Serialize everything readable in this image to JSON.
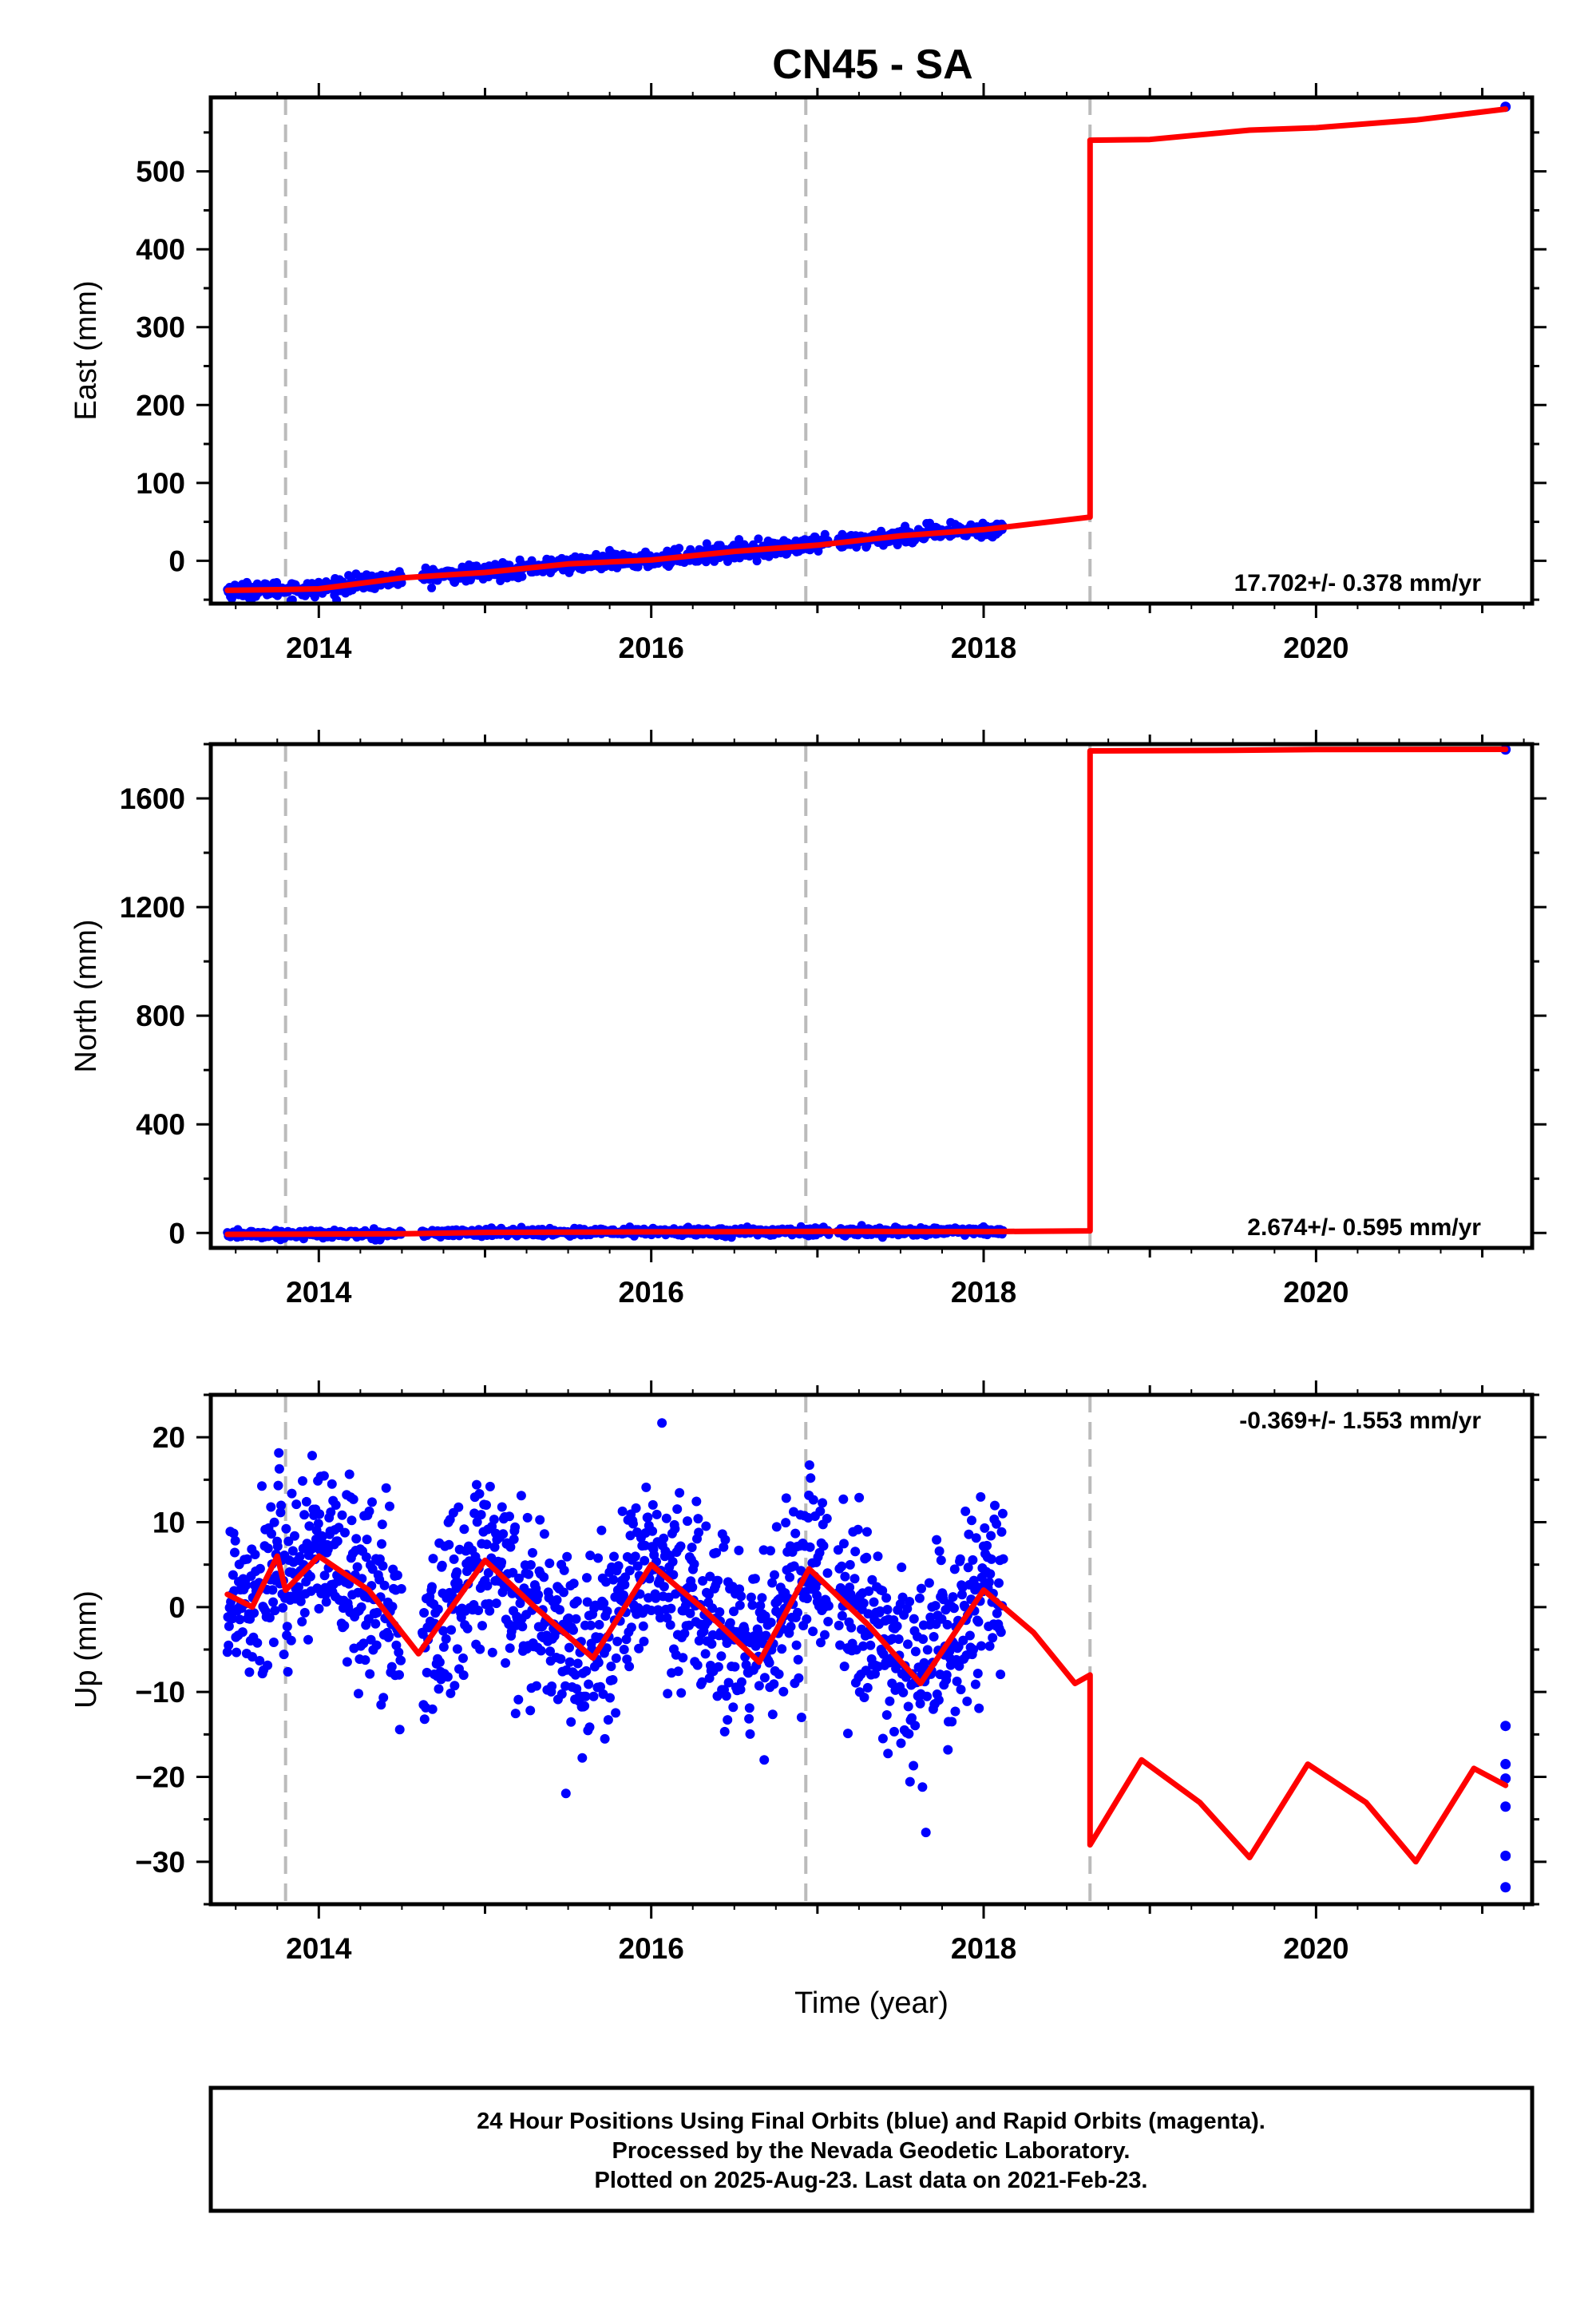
{
  "title": "CN45 - SA",
  "colors": {
    "data_points": "#0000ff",
    "model_line": "#ff0000",
    "event_lines": "#bbbbbb",
    "axes": "#000000"
  },
  "chart_data": [
    {
      "type": "scatter",
      "panel": "east",
      "ylabel": "East (mm)",
      "xlabel": "",
      "xlim": [
        2013.35,
        2021.3
      ],
      "ylim": [
        -55,
        595
      ],
      "yticks": [
        0,
        100,
        200,
        300,
        400,
        500
      ],
      "xticks": [
        2014,
        2016,
        2018,
        2020
      ],
      "event_lines_x": [
        2013.8,
        2016.93,
        2018.64
      ],
      "rate_text": "17.702+/- 0.378 mm/yr",
      "rate_position": "bottom-right",
      "series": [
        {
          "kind": "points",
          "trend": [
            [
              2013.45,
              -38
            ],
            [
              2014.0,
              -36
            ],
            [
              2014.5,
              -22
            ],
            [
              2015.0,
              -15
            ],
            [
              2015.5,
              -4
            ],
            [
              2016.0,
              1
            ],
            [
              2016.5,
              12
            ],
            [
              2017.0,
              20
            ],
            [
              2017.5,
              32
            ],
            [
              2018.12,
              42
            ]
          ],
          "noise": 5,
          "last_point": [
            2021.14,
            583
          ]
        },
        {
          "kind": "model",
          "points": [
            [
              2013.45,
              -38
            ],
            [
              2013.8,
              -37
            ],
            [
              2014.0,
              -36
            ],
            [
              2014.5,
              -22
            ],
            [
              2015.0,
              -15
            ],
            [
              2015.5,
              -4
            ],
            [
              2016.0,
              1
            ],
            [
              2016.5,
              12
            ],
            [
              2017.0,
              20
            ],
            [
              2017.5,
              32
            ],
            [
              2018.0,
              40
            ],
            [
              2018.64,
              56
            ],
            [
              2018.64,
              540
            ],
            [
              2019.0,
              541
            ],
            [
              2019.6,
              553
            ],
            [
              2020.0,
              556
            ],
            [
              2020.6,
              566
            ],
            [
              2021.14,
              580
            ]
          ]
        }
      ]
    },
    {
      "type": "scatter",
      "panel": "north",
      "ylabel": "North (mm)",
      "xlabel": "",
      "xlim": [
        2013.35,
        2021.3
      ],
      "ylim": [
        -55,
        1800
      ],
      "yticks": [
        0,
        400,
        800,
        1200,
        1600
      ],
      "xticks": [
        2014,
        2016,
        2018,
        2020
      ],
      "event_lines_x": [
        2013.8,
        2016.93,
        2018.64
      ],
      "rate_text": "2.674+/- 0.595 mm/yr",
      "rate_position": "bottom-right",
      "series": [
        {
          "kind": "points",
          "trend": [
            [
              2013.45,
              -5
            ],
            [
              2014.5,
              -3
            ],
            [
              2015.0,
              2
            ],
            [
              2016.0,
              4
            ],
            [
              2017.0,
              6
            ],
            [
              2018.12,
              5
            ]
          ],
          "noise": 7,
          "last_point": [
            2021.14,
            1780
          ]
        },
        {
          "kind": "model",
          "points": [
            [
              2013.45,
              -5
            ],
            [
              2014.5,
              -3
            ],
            [
              2015.0,
              2
            ],
            [
              2016.0,
              4
            ],
            [
              2017.0,
              6
            ],
            [
              2018.0,
              5
            ],
            [
              2018.64,
              8
            ],
            [
              2018.64,
              1775
            ],
            [
              2019.5,
              1777
            ],
            [
              2020.0,
              1780
            ],
            [
              2021.14,
              1781
            ]
          ]
        }
      ]
    },
    {
      "type": "scatter",
      "panel": "up",
      "ylabel": "Up (mm)",
      "xlabel": "Time (year)",
      "xlim": [
        2013.35,
        2021.3
      ],
      "ylim": [
        -35,
        25
      ],
      "yticks": [
        -30,
        -20,
        -10,
        0,
        10,
        20
      ],
      "xticks": [
        2014,
        2016,
        2018,
        2020
      ],
      "event_lines_x": [
        2013.8,
        2016.93,
        2018.64
      ],
      "rate_text": "-0.369+/- 1.553 mm/yr",
      "rate_position": "top-right",
      "series": [
        {
          "kind": "points",
          "trend": [
            [
              2013.45,
              1
            ],
            [
              2013.75,
              4
            ],
            [
              2014.0,
              6
            ],
            [
              2014.3,
              2
            ],
            [
              2014.6,
              -5
            ],
            [
              2015.0,
              5
            ],
            [
              2015.3,
              0
            ],
            [
              2015.6,
              -6
            ],
            [
              2016.0,
              5
            ],
            [
              2016.3,
              0
            ],
            [
              2016.6,
              -6
            ],
            [
              2016.95,
              4
            ],
            [
              2017.3,
              -2
            ],
            [
              2017.6,
              -9
            ],
            [
              2018.0,
              2
            ],
            [
              2018.12,
              0
            ]
          ],
          "noise": 5.5,
          "last_points": [
            [
              2021.14,
              -14
            ],
            [
              2021.14,
              -18.5
            ],
            [
              2021.14,
              -20.2
            ],
            [
              2021.14,
              -23.5
            ],
            [
              2021.14,
              -29.3
            ],
            [
              2021.14,
              -33
            ]
          ]
        },
        {
          "kind": "model",
          "points": [
            [
              2013.45,
              1.5
            ],
            [
              2013.6,
              0
            ],
            [
              2013.75,
              6
            ],
            [
              2013.8,
              2
            ],
            [
              2014.0,
              6
            ],
            [
              2014.3,
              2
            ],
            [
              2014.6,
              -5.5
            ],
            [
              2015.0,
              5.5
            ],
            [
              2015.3,
              0
            ],
            [
              2015.65,
              -6
            ],
            [
              2016.0,
              5
            ],
            [
              2016.3,
              0
            ],
            [
              2016.65,
              -6.5
            ],
            [
              2016.95,
              4.5
            ],
            [
              2017.3,
              -2
            ],
            [
              2017.62,
              -9
            ],
            [
              2018.0,
              2
            ],
            [
              2018.3,
              -3
            ],
            [
              2018.55,
              -9
            ],
            [
              2018.64,
              -8
            ],
            [
              2018.64,
              -28
            ],
            [
              2018.95,
              -18
            ],
            [
              2019.3,
              -23
            ],
            [
              2019.6,
              -29.5
            ],
            [
              2019.95,
              -18.5
            ],
            [
              2020.3,
              -23
            ],
            [
              2020.6,
              -30
            ],
            [
              2020.95,
              -19
            ],
            [
              2021.14,
              -21
            ]
          ]
        }
      ]
    }
  ],
  "footer": {
    "line1": "24 Hour Positions Using Final Orbits (blue) and Rapid Orbits (magenta).",
    "line2": "Processed by the Nevada Geodetic Laboratory.",
    "line3": "Plotted on 2025-Aug-23. Last data on 2021-Feb-23."
  }
}
